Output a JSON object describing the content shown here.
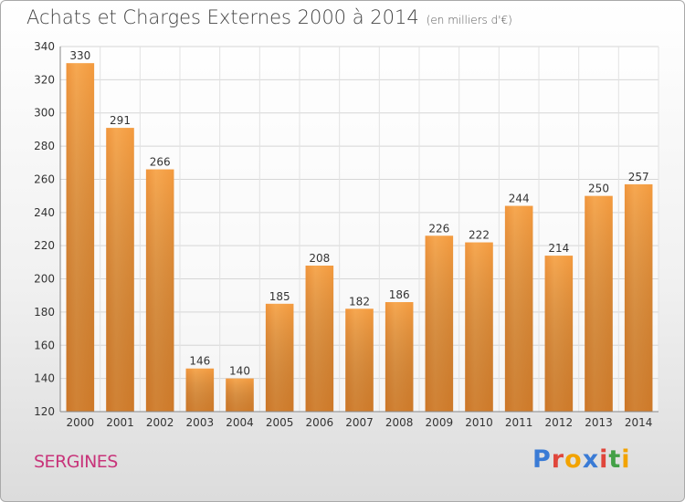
{
  "header": {
    "title": "Achats et Charges Externes 2000 à 2014",
    "unit": "(en milliers d'€)"
  },
  "footer": {
    "commune": "SERGINES",
    "logo_text": "Proxiti"
  },
  "colors": {
    "bar_light": "#f7a54f",
    "bar_dark": "#d97319",
    "commune": "#c8347a",
    "logo": [
      "#3a7bd5",
      "#e0463b",
      "#f2a300",
      "#3a7bd5",
      "#e0463b",
      "#43a047",
      "#f2a300"
    ]
  },
  "chart_data": {
    "type": "bar",
    "title": "Achats et Charges Externes 2000 à 2014",
    "subtitle": "(en milliers d'€)",
    "xlabel": "",
    "ylabel": "",
    "categories": [
      "2000",
      "2001",
      "2002",
      "2003",
      "2004",
      "2005",
      "2006",
      "2007",
      "2008",
      "2009",
      "2010",
      "2011",
      "2012",
      "2013",
      "2014"
    ],
    "values": [
      330,
      291,
      266,
      146,
      140,
      185,
      208,
      182,
      186,
      226,
      222,
      244,
      214,
      250,
      257
    ],
    "ylim": [
      120,
      340
    ],
    "yticks": [
      120,
      140,
      160,
      180,
      200,
      220,
      240,
      260,
      280,
      300,
      320,
      340
    ],
    "grid": true
  }
}
